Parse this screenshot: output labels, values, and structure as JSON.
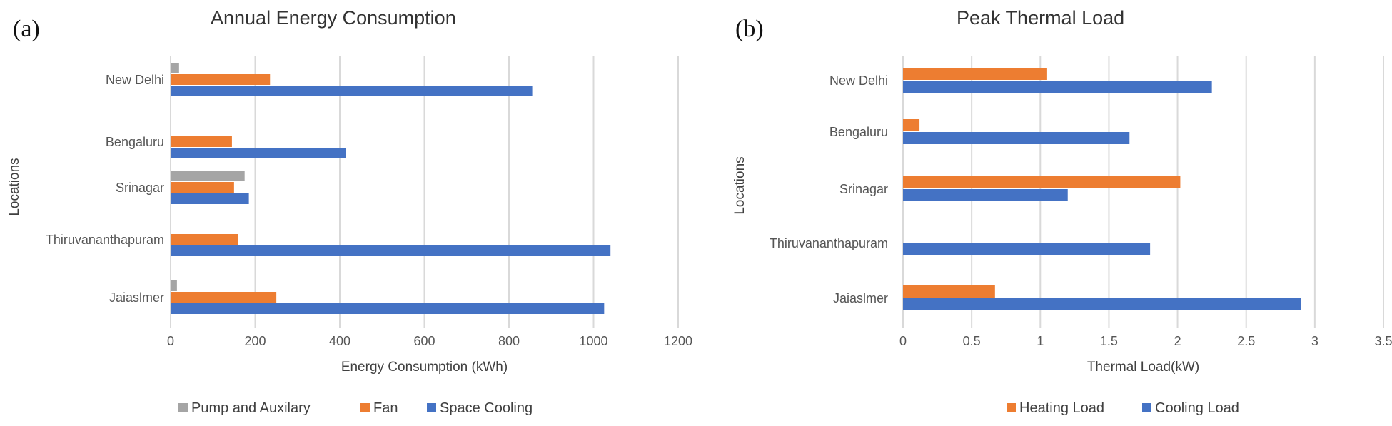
{
  "colors": {
    "pump": "#A5A5A5",
    "fan": "#ED7D31",
    "cooling": "#4472C4",
    "heating": "#ED7D31",
    "grid": "#D9D9D9"
  },
  "panel_a": {
    "label": "(a)"
  },
  "panel_b": {
    "label": "(b)"
  },
  "chart_data": [
    {
      "type": "bar",
      "orientation": "horizontal",
      "title": "Annual Energy Consumption",
      "xlabel": "Energy Consumption (kWh)",
      "ylabel": "Locations",
      "categories": [
        "New Delhi",
        "Bengaluru",
        "Srinagar",
        "Thiruvananthapuram",
        "Jaiaslmer"
      ],
      "xlim": [
        0,
        1200
      ],
      "xticks": [
        "0",
        "200",
        "400",
        "600",
        "800",
        "1000",
        "1200"
      ],
      "series": [
        {
          "name": "Pump and Auxilary",
          "values": [
            20,
            0,
            175,
            0,
            15
          ]
        },
        {
          "name": "Fan",
          "values": [
            235,
            145,
            150,
            160,
            250
          ]
        },
        {
          "name": "Space Cooling",
          "values": [
            855,
            415,
            185,
            1040,
            1025
          ]
        }
      ],
      "legend": [
        "Pump and Auxilary",
        "Fan",
        "Space Cooling"
      ],
      "legend_position": "bottom"
    },
    {
      "type": "bar",
      "orientation": "horizontal",
      "title": "Peak Thermal Load",
      "xlabel": "Thermal Load(kW)",
      "ylabel": "Locations",
      "categories": [
        "New Delhi",
        "Bengaluru",
        "Srinagar",
        "Thiruvananthapuram",
        "Jaiaslmer"
      ],
      "xlim": [
        0,
        3.5
      ],
      "xticks": [
        "0",
        "0.5",
        "1",
        "1.5",
        "2",
        "2.5",
        "3",
        "3.5"
      ],
      "series": [
        {
          "name": "Heating Load",
          "values": [
            1.05,
            0.12,
            2.02,
            0,
            0.67
          ]
        },
        {
          "name": "Cooling Load",
          "values": [
            2.25,
            1.65,
            1.2,
            1.8,
            2.9
          ]
        }
      ],
      "legend": [
        "Heating Load",
        "Cooling Load"
      ],
      "legend_position": "bottom"
    }
  ]
}
